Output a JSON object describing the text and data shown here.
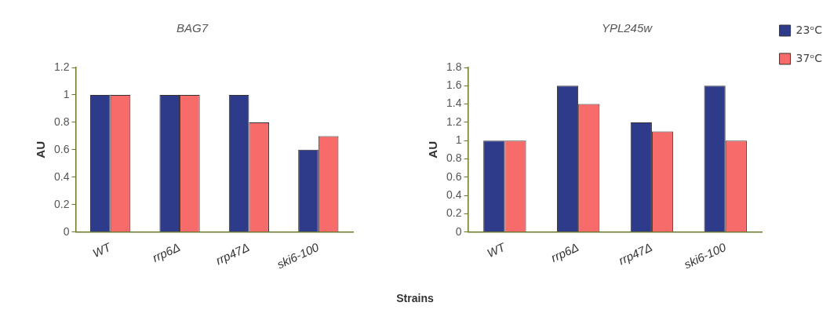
{
  "chart_data": [
    {
      "type": "bar",
      "title": "BAG7",
      "xlabel": "Strains",
      "ylabel": "AU",
      "categories": [
        "WT",
        "rrp6Δ",
        "rrp47Δ",
        "ski6-100"
      ],
      "series": [
        {
          "color": "#2e3a8a",
          "values": [
            1,
            1,
            1,
            0.6
          ]
        },
        {
          "color": "#f76b6b",
          "values": [
            1,
            1,
            0.8,
            0.7
          ]
        }
      ],
      "ylim": [
        0,
        1.2
      ],
      "yticks": [
        0,
        0.2,
        0.4,
        0.6,
        0.8,
        1,
        1.2
      ],
      "grid": false,
      "legend": false
    },
    {
      "type": "bar",
      "title": "YPL245w",
      "ylabel": "AU",
      "categories": [
        "WT",
        "rrp6Δ",
        "rrp47Δ",
        "ski6-100"
      ],
      "series": [
        {
          "name": "23ᵒC",
          "color": "#2e3a8a",
          "values": [
            1,
            1.6,
            1.2,
            1.6
          ]
        },
        {
          "name": "37ᵒC",
          "color": "#f76b6b",
          "values": [
            1,
            1.4,
            1.1,
            1
          ]
        }
      ],
      "ylim": [
        0,
        1.8
      ],
      "yticks": [
        0,
        0.2,
        0.4,
        0.6,
        0.8,
        1,
        1.2,
        1.4,
        1.6,
        1.8
      ],
      "grid": false,
      "legend": "top right"
    }
  ]
}
